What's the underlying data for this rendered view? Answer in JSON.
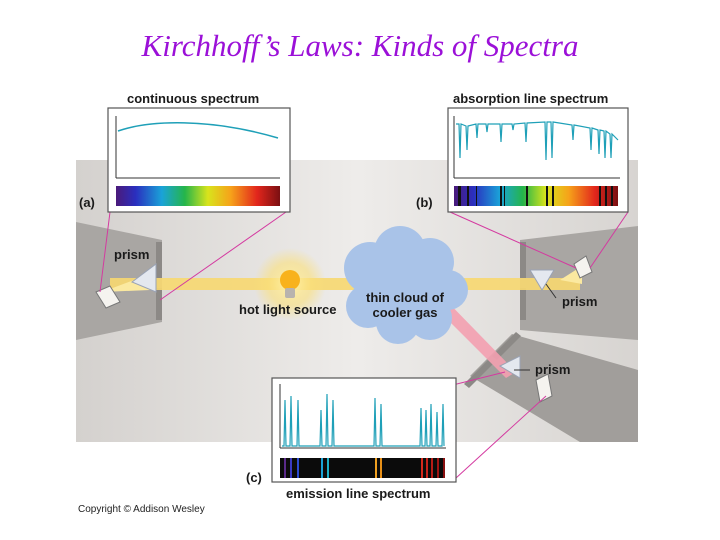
{
  "slide": {
    "title": "Kirchhoff’s Laws: Kinds of Spectra",
    "copyright": "Copyright © Addison Wesley"
  },
  "panels": {
    "a": {
      "letter": "(a)",
      "caption": "continuous spectrum"
    },
    "b": {
      "letter": "(b)",
      "caption": "absorption line spectrum"
    },
    "c": {
      "letter": "(c)",
      "caption": "emission line spectrum"
    }
  },
  "labels": {
    "prism_left": "prism",
    "prism_right": "prism",
    "prism_bottom": "prism",
    "light_source": "hot light source",
    "cloud_line1": "thin cloud of",
    "cloud_line2": "cooler gas"
  },
  "colors": {
    "title": "#9b10d8",
    "trace": "#1fa0b8",
    "beam": "#f7d870",
    "beam_emission": "#f3a0b0",
    "cloud": "#a9c3e8",
    "callout": "#d43aa0"
  }
}
